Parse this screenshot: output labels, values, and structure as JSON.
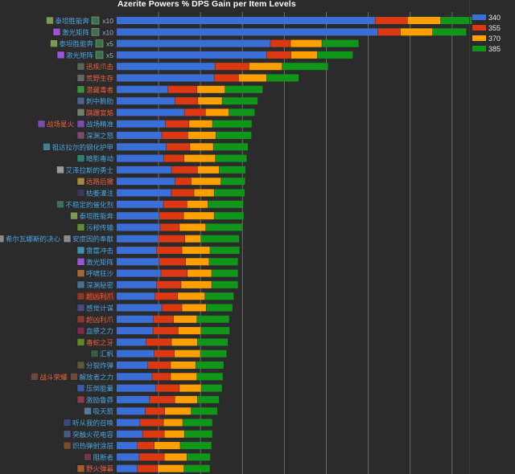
{
  "chart_data": {
    "type": "bar",
    "orientation": "horizontal",
    "stacked": true,
    "title": "Azerite Powers % DPS Gain per Item Levels",
    "xlabel": "",
    "ylabel": "",
    "x_unit_note": "values in gridline units (axis unlabeled)",
    "xlim": [
      0,
      8.7
    ],
    "grid": true,
    "legend_position": "top-right",
    "colors": {
      "340": "#3a6fd8",
      "355": "#dc3912",
      "370": "#ff9f00",
      "385": "#109618"
    },
    "categories": [
      {
        "labels": [
          {
            "text": "泰坦胜能奔",
            "color": "#4aa3df"
          }
        ],
        "suffix": "x10",
        "icon_color": "#7a9a55"
      },
      {
        "labels": [
          {
            "text": "激光矩阵",
            "color": "#4aa3df"
          }
        ],
        "suffix": "x10",
        "icon_color": "#9a55d8"
      },
      {
        "labels": [
          {
            "text": "泰坦胜能奔",
            "color": "#4aa3df"
          }
        ],
        "suffix": "x5",
        "icon_color": "#7a9a55"
      },
      {
        "labels": [
          {
            "text": "激光矩阵",
            "color": "#4aa3df"
          }
        ],
        "suffix": "x5",
        "icon_color": "#9a55d8"
      },
      {
        "labels": [
          {
            "text": "迅疾爪击",
            "color": "#e8603c"
          }
        ],
        "suffix": "",
        "icon_color": "#556655"
      },
      {
        "labels": [
          {
            "text": "荒野生存",
            "color": "#e8603c"
          }
        ],
        "suffix": "",
        "icon_color": "#666666"
      },
      {
        "labels": [
          {
            "text": "潜藏毒者",
            "color": "#e8603c"
          }
        ],
        "suffix": "",
        "icon_color": "#3f8f3f"
      },
      {
        "labels": [
          {
            "text": "刺中脆肋",
            "color": "#4aa3df"
          }
        ],
        "suffix": "",
        "icon_color": "#4f5f8f"
      },
      {
        "labels": [
          {
            "text": "蹒跚宣焰",
            "color": "#e8603c"
          }
        ],
        "suffix": "",
        "icon_color": "#6f7f6f"
      },
      {
        "labels": [
          {
            "text": "战场星火",
            "color": "#e8603c"
          },
          {
            "text": "战场精准",
            "color": "#4aa3df"
          }
        ],
        "suffix": "",
        "icon_color": "#7a4aa8"
      },
      {
        "labels": [
          {
            "text": "深渊之怒",
            "color": "#4aa3df"
          }
        ],
        "suffix": "",
        "icon_color": "#7a4a6a"
      },
      {
        "labels": [
          {
            "text": "祖达拉尔的钢化护甲",
            "color": "#4aa3df"
          }
        ],
        "suffix": "",
        "icon_color": "#3f7f8f"
      },
      {
        "labels": [
          {
            "text": "暗影毒动",
            "color": "#4aa3df"
          }
        ],
        "suffix": "",
        "icon_color": "#2f7f6f"
      },
      {
        "labels": [
          {
            "text": "艾泽拉斯的勇士",
            "color": "#4aa3df"
          }
        ],
        "suffix": "",
        "icon_color": "#9a9a9a"
      },
      {
        "labels": [
          {
            "text": "远路后撤",
            "color": "#e8603c"
          }
        ],
        "suffix": "",
        "icon_color": "#a8883a"
      },
      {
        "labels": [
          {
            "text": "枯萎灌注",
            "color": "#4aa3df"
          }
        ],
        "suffix": "",
        "icon_color": "#3a3a5a"
      },
      {
        "labels": [
          {
            "text": "不稳定的催化剂",
            "color": "#4aa3df"
          }
        ],
        "suffix": "",
        "icon_color": "#3f6f5f"
      },
      {
        "labels": [
          {
            "text": "泰坦胜能奔",
            "color": "#4aa3df"
          }
        ],
        "suffix": "",
        "icon_color": "#7a9a55"
      },
      {
        "labels": [
          {
            "text": "污秽传输",
            "color": "#4aa3df"
          }
        ],
        "suffix": "",
        "icon_color": "#5f8f2f"
      },
      {
        "labels": [
          {
            "text": "希尔瓦娜斯的决心",
            "color": "#4aa3df"
          },
          {
            "text": "安度因的奉献",
            "color": "#4aa3df"
          }
        ],
        "suffix": "",
        "icon_color": "#8a8a8a"
      },
      {
        "labels": [
          {
            "text": "雷霆冲击",
            "color": "#4aa3df"
          }
        ],
        "suffix": "",
        "icon_color": "#3f8faf"
      },
      {
        "labels": [
          {
            "text": "激光矩阵",
            "color": "#4aa3df"
          }
        ],
        "suffix": "",
        "icon_color": "#9a55d8"
      },
      {
        "labels": [
          {
            "text": "呼啸狂沙",
            "color": "#4aa3df"
          }
        ],
        "suffix": "",
        "icon_color": "#a8643a"
      },
      {
        "labels": [
          {
            "text": "深渊秘密",
            "color": "#4aa3df"
          }
        ],
        "suffix": "",
        "icon_color": "#4f6f8f"
      },
      {
        "labels": [
          {
            "text": "超凶利爪",
            "color": "#e8603c"
          }
        ],
        "suffix": "",
        "icon_color": "#8a3a2a",
        "boxed": true
      },
      {
        "labels": [
          {
            "text": "感觉计谋",
            "color": "#4aa3df"
          }
        ],
        "suffix": "",
        "icon_color": "#4a4a7a"
      },
      {
        "labels": [
          {
            "text": "超凶利爪",
            "color": "#e8603c"
          }
        ],
        "suffix": "",
        "icon_color": "#8a3a2a"
      },
      {
        "labels": [
          {
            "text": "血祭之力",
            "color": "#4aa3df"
          }
        ],
        "suffix": "",
        "icon_color": "#7a2a4a"
      },
      {
        "labels": [
          {
            "text": "毒蛇之牙",
            "color": "#e8603c"
          }
        ],
        "suffix": "",
        "icon_color": "#5a8a2a"
      },
      {
        "labels": [
          {
            "text": "汇帆",
            "color": "#4aa3df"
          }
        ],
        "suffix": "",
        "icon_color": "#3a5a4a"
      },
      {
        "labels": [
          {
            "text": "分裂炸弹",
            "color": "#4aa3df"
          }
        ],
        "suffix": "",
        "icon_color": "#5a5a3a"
      },
      {
        "labels": [
          {
            "text": "战斗荣耀",
            "color": "#e8603c"
          },
          {
            "text": "解放者之力",
            "color": "#4aa3df"
          }
        ],
        "suffix": "",
        "icon_color": "#6a4a3a"
      },
      {
        "labels": [
          {
            "text": "压倒能量",
            "color": "#4aa3df"
          }
        ],
        "suffix": "",
        "icon_color": "#3a5aaa"
      },
      {
        "labels": [
          {
            "text": "激励鲁莽",
            "color": "#4aa3df"
          }
        ],
        "suffix": "",
        "icon_color": "#8a3a4a"
      },
      {
        "labels": [
          {
            "text": "吸天箭",
            "color": "#4aa3df"
          }
        ],
        "suffix": "",
        "icon_color": "#5a7a9a"
      },
      {
        "labels": [
          {
            "text": "听从我的召唤",
            "color": "#4aa3df"
          }
        ],
        "suffix": "",
        "icon_color": "#3a4a7a"
      },
      {
        "labels": [
          {
            "text": "突触火花电容",
            "color": "#4aa3df"
          }
        ],
        "suffix": "",
        "icon_color": "#4a5a7a"
      },
      {
        "labels": [
          {
            "text": "炽热弹射涂层",
            "color": "#4aa3df"
          }
        ],
        "suffix": "",
        "icon_color": "#7a4a2a"
      },
      {
        "labels": [
          {
            "text": "阻断者",
            "color": "#4aa3df"
          }
        ],
        "suffix": "",
        "icon_color": "#6a3a4a"
      },
      {
        "labels": [
          {
            "text": "野火弹幕",
            "color": "#e8603c"
          }
        ],
        "suffix": "",
        "icon_color": "#aa5a2a"
      }
    ],
    "series": [
      {
        "name": "340",
        "values": [
          6.17,
          6.23,
          3.67,
          3.58,
          2.35,
          2.33,
          1.23,
          1.4,
          1.62,
          1.17,
          1.08,
          1.19,
          1.13,
          1.31,
          1.4,
          1.31,
          1.12,
          1.02,
          1.04,
          1.0,
          0.96,
          1.02,
          1.06,
          0.96,
          0.92,
          1.08,
          0.88,
          0.87,
          0.71,
          0.9,
          0.75,
          0.85,
          0.94,
          0.79,
          0.69,
          0.56,
          0.62,
          0.5,
          0.54,
          0.5
        ]
      },
      {
        "name": "355",
        "values": [
          0.77,
          0.54,
          0.48,
          0.58,
          0.81,
          0.58,
          0.69,
          0.54,
          0.5,
          0.56,
          0.62,
          0.56,
          0.48,
          0.62,
          0.38,
          0.54,
          0.56,
          0.58,
          0.46,
          0.63,
          0.6,
          0.63,
          0.63,
          0.58,
          0.54,
          0.48,
          0.48,
          0.6,
          0.6,
          0.48,
          0.54,
          0.44,
          0.56,
          0.6,
          0.46,
          0.56,
          0.52,
          0.4,
          0.6,
          0.48
        ]
      },
      {
        "name": "370",
        "values": [
          0.79,
          0.77,
          0.75,
          0.63,
          0.79,
          0.67,
          0.67,
          0.58,
          0.56,
          0.56,
          0.67,
          0.56,
          0.75,
          0.52,
          0.71,
          0.48,
          0.5,
          0.73,
          0.63,
          0.38,
          0.67,
          0.56,
          0.58,
          0.73,
          0.65,
          0.58,
          0.56,
          0.54,
          0.62,
          0.62,
          0.6,
          0.63,
          0.52,
          0.54,
          0.63,
          0.46,
          0.48,
          0.62,
          0.54,
          0.63
        ]
      },
      {
        "name": "385",
        "values": [
          0.75,
          0.81,
          0.88,
          0.85,
          1.1,
          0.77,
          0.9,
          0.85,
          0.62,
          0.94,
          0.85,
          0.83,
          0.75,
          0.63,
          0.58,
          0.73,
          0.85,
          0.71,
          0.87,
          0.92,
          0.71,
          0.69,
          0.63,
          0.63,
          0.69,
          0.63,
          0.77,
          0.69,
          0.73,
          0.63,
          0.67,
          0.62,
          0.5,
          0.52,
          0.63,
          0.71,
          0.67,
          0.75,
          0.56,
          0.62
        ]
      }
    ]
  }
}
